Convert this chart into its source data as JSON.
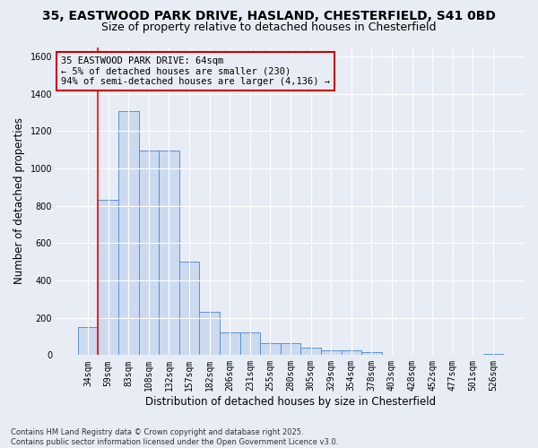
{
  "title_line1": "35, EASTWOOD PARK DRIVE, HASLAND, CHESTERFIELD, S41 0BD",
  "title_line2": "Size of property relative to detached houses in Chesterfield",
  "xlabel": "Distribution of detached houses by size in Chesterfield",
  "ylabel": "Number of detached properties",
  "bar_color": "#ccdaf0",
  "bar_edge_color": "#5b8fd4",
  "background_color": "#e8edf5",
  "grid_color": "#ffffff",
  "annotation_box_color": "#cc0000",
  "annotation_text": "35 EASTWOOD PARK DRIVE: 64sqm\n← 5% of detached houses are smaller (230)\n94% of semi-detached houses are larger (4,136) →",
  "marker_bin_index": 1,
  "categories": [
    "34sqm",
    "59sqm",
    "83sqm",
    "108sqm",
    "132sqm",
    "157sqm",
    "182sqm",
    "206sqm",
    "231sqm",
    "255sqm",
    "280sqm",
    "305sqm",
    "329sqm",
    "354sqm",
    "378sqm",
    "403sqm",
    "428sqm",
    "452sqm",
    "477sqm",
    "501sqm",
    "526sqm"
  ],
  "values": [
    150,
    830,
    1305,
    1095,
    1095,
    500,
    230,
    120,
    120,
    65,
    65,
    40,
    25,
    25,
    15,
    0,
    0,
    0,
    0,
    0,
    8
  ],
  "ylim": [
    0,
    1650
  ],
  "yticks": [
    0,
    200,
    400,
    600,
    800,
    1000,
    1200,
    1400,
    1600
  ],
  "footnote": "Contains HM Land Registry data © Crown copyright and database right 2025.\nContains public sector information licensed under the Open Government Licence v3.0.",
  "title_fontsize": 10,
  "subtitle_fontsize": 9,
  "axis_label_fontsize": 8.5,
  "tick_fontsize": 7,
  "annotation_fontsize": 7.5
}
